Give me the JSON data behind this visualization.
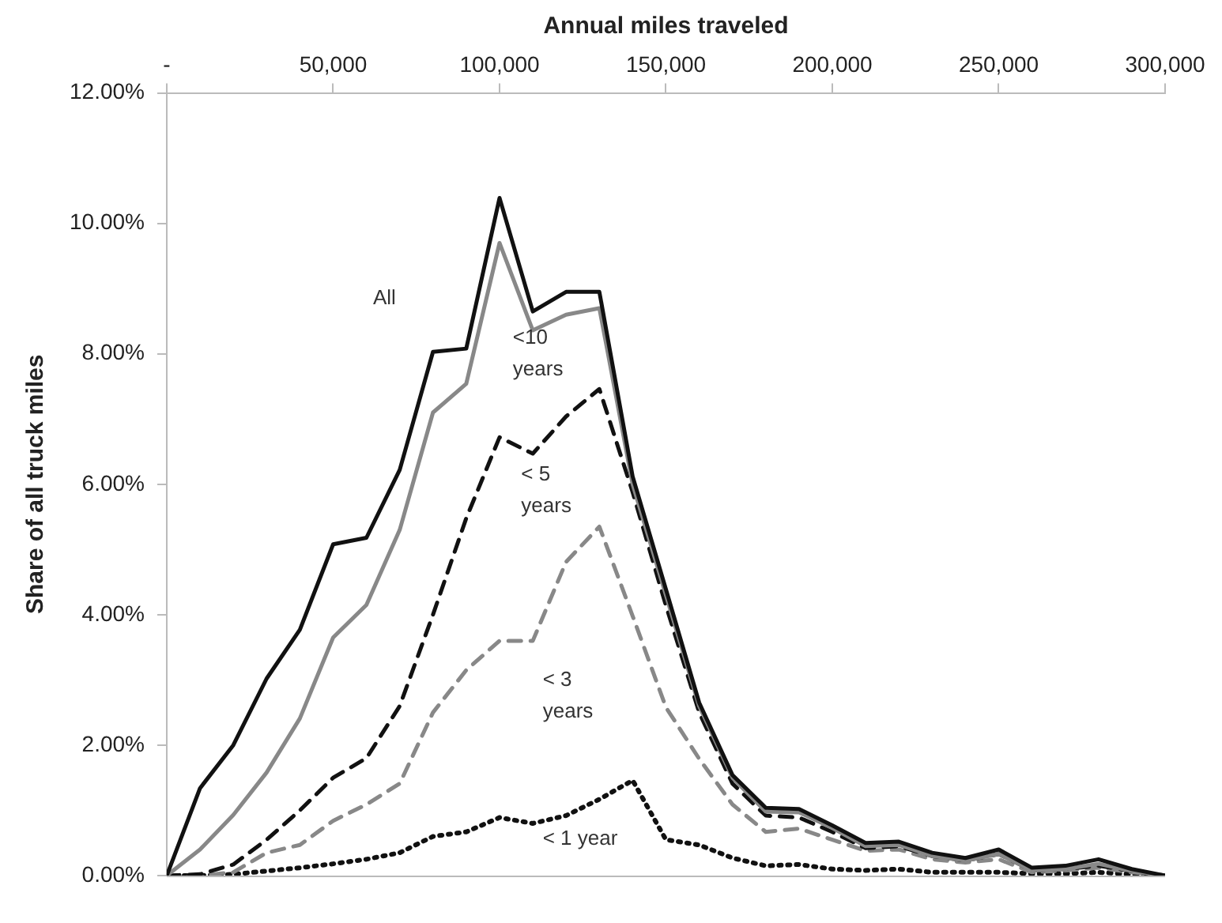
{
  "chart_data": {
    "type": "line",
    "xlabel": "Annual miles traveled",
    "ylabel": "Share of all truck miles",
    "x": [
      0,
      10000,
      20000,
      30000,
      40000,
      50000,
      60000,
      70000,
      80000,
      90000,
      100000,
      110000,
      120000,
      130000,
      140000,
      150000,
      160000,
      170000,
      180000,
      190000,
      200000,
      210000,
      220000,
      230000,
      240000,
      250000,
      260000,
      270000,
      280000,
      290000,
      300000
    ],
    "xlim": [
      0,
      300000
    ],
    "xticks": [
      {
        "value": 0,
        "label": "-"
      },
      {
        "value": 50000,
        "label": "50,000"
      },
      {
        "value": 100000,
        "label": "100,000"
      },
      {
        "value": 150000,
        "label": "150,000"
      },
      {
        "value": 200000,
        "label": "200,000"
      },
      {
        "value": 250000,
        "label": "250,000"
      },
      {
        "value": 300000,
        "label": "300,000"
      }
    ],
    "ylim": [
      0,
      12
    ],
    "yticks": [
      {
        "value": 0,
        "label": "0.00%"
      },
      {
        "value": 2,
        "label": "2.00%"
      },
      {
        "value": 4,
        "label": "4.00%"
      },
      {
        "value": 6,
        "label": "6.00%"
      },
      {
        "value": 8,
        "label": "8.00%"
      },
      {
        "value": 10,
        "label": "10.00%"
      },
      {
        "value": 12,
        "label": "12.00%"
      }
    ],
    "grid": false,
    "legend": false,
    "marker": "none",
    "series": [
      {
        "name": "All",
        "color": "#111111",
        "line_style": "solid",
        "values": [
          0,
          1.34,
          2.0,
          3.02,
          3.77,
          5.08,
          5.18,
          6.22,
          8.03,
          8.08,
          10.39,
          8.65,
          8.95,
          8.95,
          6.12,
          4.39,
          2.65,
          1.54,
          1.04,
          1.02,
          0.77,
          0.5,
          0.52,
          0.35,
          0.27,
          0.4,
          0.12,
          0.15,
          0.25,
          0.1,
          0
        ]
      },
      {
        "name": "<10 years",
        "color": "#888888",
        "line_style": "solid",
        "values": [
          0,
          0.4,
          0.93,
          1.58,
          2.41,
          3.65,
          4.15,
          5.3,
          7.1,
          7.54,
          9.7,
          8.36,
          8.6,
          8.7,
          6.0,
          4.3,
          2.6,
          1.5,
          0.98,
          0.97,
          0.73,
          0.45,
          0.47,
          0.3,
          0.23,
          0.33,
          0.08,
          0.1,
          0.18,
          0.07,
          0
        ]
      },
      {
        "name": "< 5 years",
        "color": "#111111",
        "line_style": "dashed",
        "values": [
          0,
          0.02,
          0.17,
          0.55,
          1.0,
          1.5,
          1.8,
          2.6,
          4.0,
          5.48,
          6.72,
          6.47,
          7.04,
          7.46,
          5.88,
          4.14,
          2.5,
          1.41,
          0.92,
          0.89,
          0.67,
          0.42,
          0.45,
          0.3,
          0.23,
          0.33,
          0.08,
          0.1,
          0.15,
          0.07,
          0
        ]
      },
      {
        "name": "< 3 years",
        "color": "#888888",
        "line_style": "dashed",
        "values": [
          0,
          0,
          0.05,
          0.35,
          0.47,
          0.84,
          1.09,
          1.41,
          2.5,
          3.15,
          3.6,
          3.6,
          4.81,
          5.35,
          3.98,
          2.58,
          1.79,
          1.09,
          0.67,
          0.72,
          0.55,
          0.38,
          0.4,
          0.25,
          0.2,
          0.25,
          0.05,
          0.08,
          0.12,
          0.05,
          0
        ]
      },
      {
        "name": "< 1 year",
        "color": "#111111",
        "line_style": "dotted",
        "values": [
          0,
          0,
          0.02,
          0.07,
          0.12,
          0.18,
          0.25,
          0.35,
          0.6,
          0.67,
          0.89,
          0.8,
          0.92,
          1.17,
          1.46,
          0.55,
          0.47,
          0.27,
          0.15,
          0.17,
          0.1,
          0.08,
          0.1,
          0.05,
          0.05,
          0.05,
          0.03,
          0.03,
          0.05,
          0.02,
          0
        ]
      }
    ]
  }
}
